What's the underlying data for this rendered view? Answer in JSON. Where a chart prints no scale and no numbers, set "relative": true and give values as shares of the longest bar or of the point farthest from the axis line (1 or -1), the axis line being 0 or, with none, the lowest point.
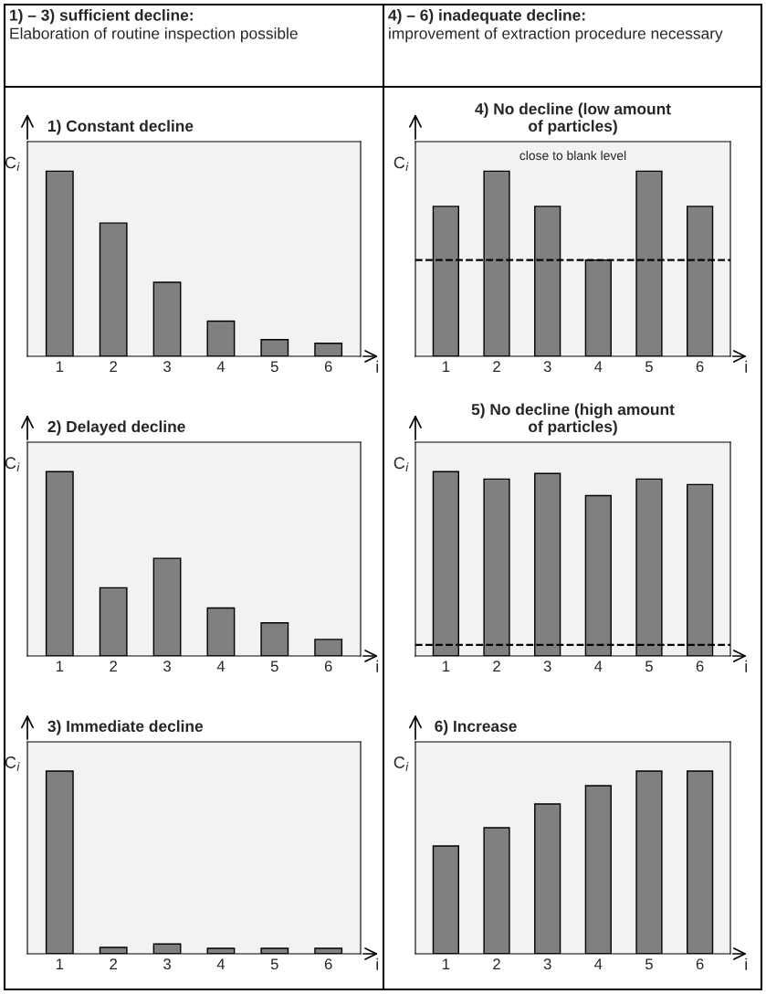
{
  "chart_data": [
    {
      "type": "other",
      "title": "1) – 3) sufficient decline:",
      "annotations": [
        "Elaboration of routine inspection possible"
      ]
    },
    {
      "type": "other",
      "title": "4) – 6) inadequate decline:",
      "annotations": [
        "improvement of extraction procedure necessary"
      ]
    },
    {
      "type": "bar",
      "title": "1) Constant decline",
      "xlabel": "i",
      "ylabel": "C$_{i}$",
      "relative": true,
      "categories": [
        "1",
        "2",
        "3",
        "4",
        "5",
        "6"
      ],
      "color": "#808080",
      "values": [
        1,
        0.72,
        0.4,
        0.19,
        0.09,
        0.07
      ]
    },
    {
      "type": "bar",
      "title": "4) No decline (low amount\nof particles)",
      "xlabel": "i",
      "ylabel": "C$_{i}$",
      "relative": true,
      "categories": [
        "1",
        "2",
        "3",
        "4",
        "5",
        "6"
      ],
      "color": "#808080",
      "values": [
        0.81,
        1,
        0.81,
        0.52,
        1,
        0.81
      ],
      "ref_lines": [
        {
          "axis": "y",
          "value": 0.52,
          "color": "#000000",
          "line_style": "dashed"
        }
      ],
      "annotations": [
        "close to blank level"
      ]
    },
    {
      "type": "bar",
      "title": "2) Delayed decline",
      "xlabel": "i",
      "ylabel": "C$_{i}$",
      "relative": true,
      "categories": [
        "1",
        "2",
        "3",
        "4",
        "5",
        "6"
      ],
      "color": "#808080",
      "values": [
        1,
        0.37,
        0.53,
        0.26,
        0.18,
        0.09
      ]
    },
    {
      "type": "bar",
      "title": "5) No decline (high amount\nof particles)",
      "xlabel": "i",
      "ylabel": "C$_{i}$",
      "relative": true,
      "categories": [
        "1",
        "2",
        "3",
        "4",
        "5",
        "6"
      ],
      "color": "#808080",
      "values": [
        1,
        0.96,
        0.99,
        0.87,
        0.96,
        0.93
      ],
      "ref_lines": [
        {
          "axis": "y",
          "value": 0.06,
          "color": "#000000",
          "line_style": "dashed"
        }
      ]
    },
    {
      "type": "bar",
      "title": "3) Immediate decline",
      "xlabel": "i",
      "ylabel": "C$_{i}$",
      "relative": true,
      "categories": [
        "1",
        "2",
        "3",
        "4",
        "5",
        "6"
      ],
      "color": "#808080",
      "values": [
        1,
        0.035,
        0.054,
        0.03,
        0.03,
        0.03
      ]
    },
    {
      "type": "bar",
      "title": "6) Increase",
      "xlabel": "i",
      "ylabel": "C$_{i}$",
      "relative": true,
      "categories": [
        "1",
        "2",
        "3",
        "4",
        "5",
        "6"
      ],
      "color": "#808080",
      "values": [
        0.59,
        0.69,
        0.82,
        0.92,
        1,
        1
      ]
    }
  ]
}
